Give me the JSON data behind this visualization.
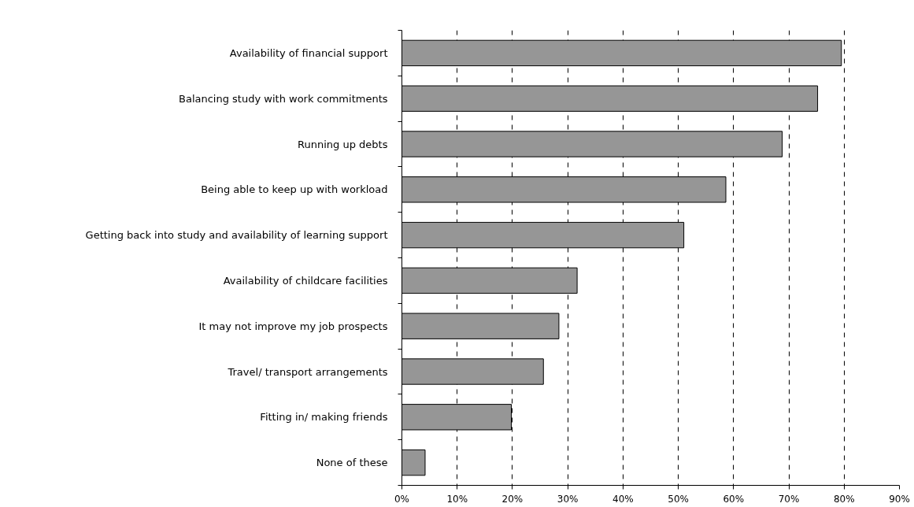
{
  "chart_data": {
    "type": "bar",
    "orientation": "horizontal",
    "categories": [
      "Availability of financial support",
      "Balancing study with work commitments",
      "Running up debts",
      "Being able to keep up with workload",
      "Getting back into study and availability of learning support",
      "Availability of childcare facilities",
      "It may not improve my job prospects",
      "Travel/ transport arrangements",
      "Fitting in/ making friends",
      "None of these"
    ],
    "values": [
      79.5,
      75.2,
      68.8,
      58.6,
      51.0,
      31.7,
      28.4,
      25.6,
      19.8,
      4.2
    ],
    "color": "#969696",
    "xlim": [
      0,
      90
    ],
    "xticks": [
      {
        "value": 0,
        "label": "0%"
      },
      {
        "value": 10,
        "label": "10%"
      },
      {
        "value": 20,
        "label": "20%"
      },
      {
        "value": 30,
        "label": "30%"
      },
      {
        "value": 40,
        "label": "40%"
      },
      {
        "value": 50,
        "label": "50%"
      },
      {
        "value": 60,
        "label": "60%"
      },
      {
        "value": 70,
        "label": "70%"
      },
      {
        "value": 80,
        "label": "80%"
      },
      {
        "value": 90,
        "label": "90%"
      }
    ],
    "grid": "x"
  }
}
